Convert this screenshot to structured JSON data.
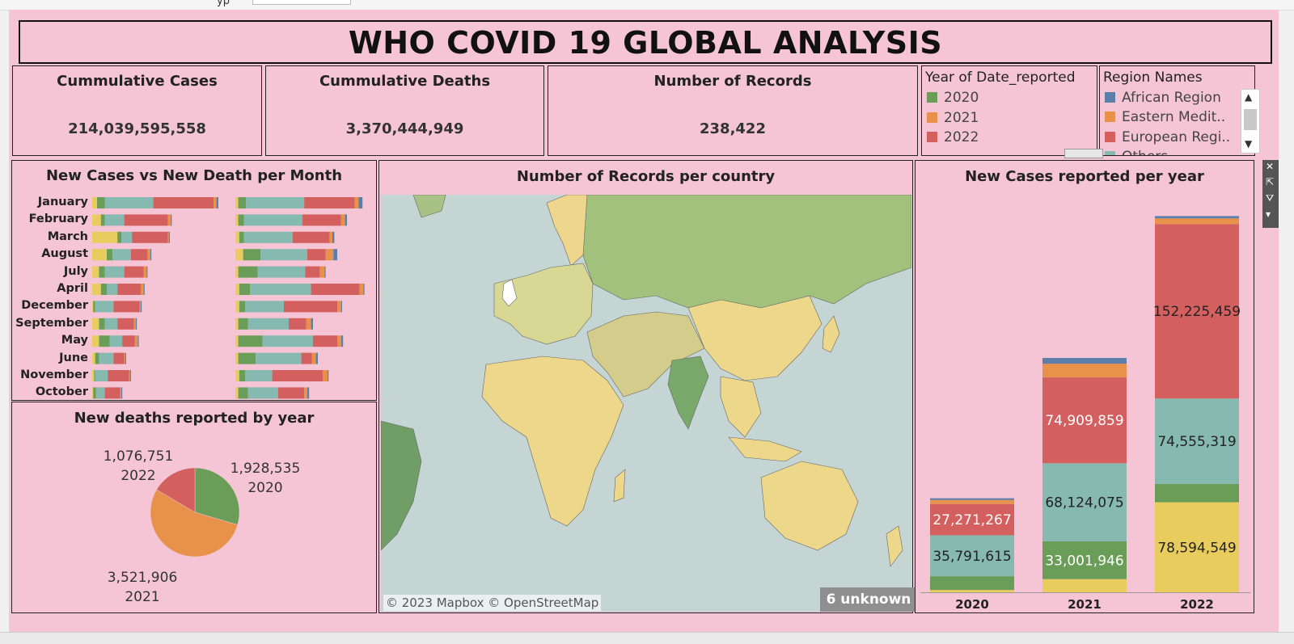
{
  "header": {
    "title": "WHO COVID 19 GLOBAL ANALYSIS"
  },
  "kpis": [
    {
      "label": "Cummulative Cases",
      "value": "214,039,595,558"
    },
    {
      "label": "Cummulative Deaths",
      "value": "3,370,444,949"
    },
    {
      "label": "Number of Records",
      "value": "238,422"
    }
  ],
  "year_legend": {
    "title": "Year of Date_reported",
    "items": [
      {
        "label": "2020",
        "color": "#6a9e58"
      },
      {
        "label": "2021",
        "color": "#e8914a"
      },
      {
        "label": "2022",
        "color": "#d45f5f"
      }
    ]
  },
  "region_legend": {
    "title": "Region Names",
    "items": [
      {
        "label": "African Region",
        "color": "#5b7fa8"
      },
      {
        "label": "Eastern Medit..",
        "color": "#e8914a"
      },
      {
        "label": "European Regi..",
        "color": "#d45f5f"
      },
      {
        "label": "Others",
        "color": "#86b9b0"
      }
    ]
  },
  "monthly": {
    "title": "New Cases vs New Death per Month",
    "months": [
      "January",
      "February",
      "March",
      "August",
      "July",
      "April",
      "December",
      "September",
      "May",
      "June",
      "November",
      "October"
    ]
  },
  "pie": {
    "title": "New deaths reported by year",
    "labels": [
      {
        "value": "1,928,535",
        "year": "2020"
      },
      {
        "value": "3,521,906",
        "year": "2021"
      },
      {
        "value": "1,076,751",
        "year": "2022"
      }
    ]
  },
  "map": {
    "title": "Number of Records per country",
    "attribution": "© 2023 Mapbox © OpenStreetMap",
    "unknown_label": "6 unknown"
  },
  "stacked": {
    "title": "New Cases reported per year",
    "years": [
      "2020",
      "2021",
      "2022"
    ]
  },
  "chart_data": [
    {
      "type": "bar",
      "title": "New Cases reported per year",
      "categories": [
        "2020",
        "2021",
        "2022"
      ],
      "series": [
        {
          "name": "",
          "color": "#e9cc5e",
          "values": [
            2000000,
            11500000,
            78594549
          ],
          "labels": [
            "",
            "",
            "78,594,549"
          ]
        },
        {
          "name": "",
          "color": "#6a9e58",
          "values": [
            12000000,
            33001946,
            16000000
          ],
          "labels": [
            "",
            "33,001,946",
            ""
          ]
        },
        {
          "name": "Others",
          "color": "#86b9b0",
          "values": [
            35791615,
            68124075,
            74555319
          ],
          "labels": [
            "35,791,615",
            "68,124,075",
            "74,555,319"
          ]
        },
        {
          "name": "European Regi..",
          "color": "#d45f5f",
          "values": [
            27271267,
            74909859,
            152225459
          ],
          "labels": [
            "27,271,267",
            "74,909,859",
            "152,225,459"
          ]
        },
        {
          "name": "Eastern Medit..",
          "color": "#e8914a",
          "values": [
            3500000,
            12000000,
            5000000
          ],
          "labels": [
            "",
            "",
            ""
          ]
        },
        {
          "name": "African Region",
          "color": "#5b7fa8",
          "values": [
            1500000,
            5000000,
            2000000
          ],
          "labels": [
            "",
            "",
            ""
          ]
        }
      ],
      "ylim": [
        0,
        335000000
      ]
    },
    {
      "type": "pie",
      "title": "New deaths reported by year",
      "categories": [
        "2020",
        "2021",
        "2022"
      ],
      "values": [
        1928535,
        3521906,
        1076751
      ],
      "colors": [
        "#6a9e58",
        "#e8914a",
        "#d45f5f"
      ]
    },
    {
      "type": "bar",
      "title": "New Cases vs New Death per Month",
      "categories": [
        "January",
        "February",
        "March",
        "August",
        "July",
        "April",
        "December",
        "September",
        "May",
        "June",
        "November",
        "October"
      ],
      "segment_colors": [
        "#e9cc5e",
        "#6a9e58",
        "#86b9b0",
        "#d45f5f",
        "#e8914a",
        "#5b7fa8"
      ],
      "cases": [
        [
          5,
          8,
          50,
          62,
          3,
          2
        ],
        [
          9,
          4,
          20,
          45,
          3,
          1
        ],
        [
          26,
          4,
          11,
          37,
          1,
          1
        ],
        [
          15,
          6,
          19,
          17,
          3,
          1
        ],
        [
          7,
          6,
          20,
          20,
          3,
          1
        ],
        [
          9,
          6,
          11,
          24,
          3,
          1
        ],
        [
          1,
          2,
          19,
          27,
          1,
          1
        ],
        [
          7,
          6,
          13,
          17,
          2,
          1
        ],
        [
          7,
          11,
          13,
          13,
          3,
          1
        ],
        [
          3,
          4,
          15,
          11,
          1,
          1
        ],
        [
          2,
          1,
          13,
          22,
          1,
          1
        ],
        [
          1,
          3,
          9,
          16,
          1,
          1
        ]
      ],
      "deaths": [
        [
          3,
          8,
          60,
          52,
          4,
          4
        ],
        [
          3,
          6,
          60,
          40,
          4,
          2
        ],
        [
          4,
          5,
          50,
          38,
          3,
          2
        ],
        [
          8,
          18,
          48,
          19,
          8,
          4
        ],
        [
          3,
          20,
          49,
          15,
          5,
          1
        ],
        [
          4,
          11,
          63,
          50,
          4,
          1
        ],
        [
          4,
          6,
          40,
          55,
          4,
          1
        ],
        [
          3,
          10,
          42,
          18,
          5,
          2
        ],
        [
          3,
          25,
          52,
          25,
          4,
          2
        ],
        [
          3,
          18,
          47,
          11,
          4,
          2
        ],
        [
          4,
          6,
          28,
          52,
          5,
          1
        ],
        [
          3,
          10,
          31,
          27,
          3,
          2
        ]
      ]
    }
  ]
}
